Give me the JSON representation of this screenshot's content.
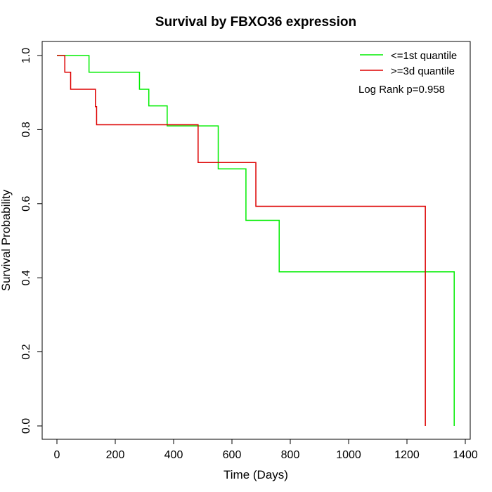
{
  "chart_data": {
    "type": "line",
    "step": true,
    "title": "Survival by FBXO36 expression",
    "xlabel": "Time (Days)",
    "ylabel": "Survival Probability",
    "xlim": [
      0,
      1400
    ],
    "ylim": [
      0,
      1.0
    ],
    "xticks": [
      "0",
      "200",
      "400",
      "600",
      "800",
      "1000",
      "1200",
      "1400"
    ],
    "yticks": [
      "0.0",
      "0.2",
      "0.4",
      "0.6",
      "0.8",
      "1.0"
    ],
    "legend_position": "top-right",
    "annotation": "Log Rank p=0.958",
    "series": [
      {
        "name": "<=1st quantile",
        "color": "#00ee00",
        "x": [
          0,
          110,
          283,
          315,
          378,
          553,
          648,
          762,
          1362,
          1362
        ],
        "y": [
          1.0,
          0.955,
          0.909,
          0.864,
          0.81,
          0.694,
          0.555,
          0.416,
          0.416,
          0.0
        ]
      },
      {
        "name": ">=3d quantile",
        "color": "#dd0000",
        "x": [
          0,
          27,
          47,
          132,
          136,
          484,
          682,
          1263,
          1263
        ],
        "y": [
          1.0,
          0.955,
          0.909,
          0.862,
          0.813,
          0.711,
          0.593,
          0.593,
          0.0
        ]
      }
    ]
  }
}
